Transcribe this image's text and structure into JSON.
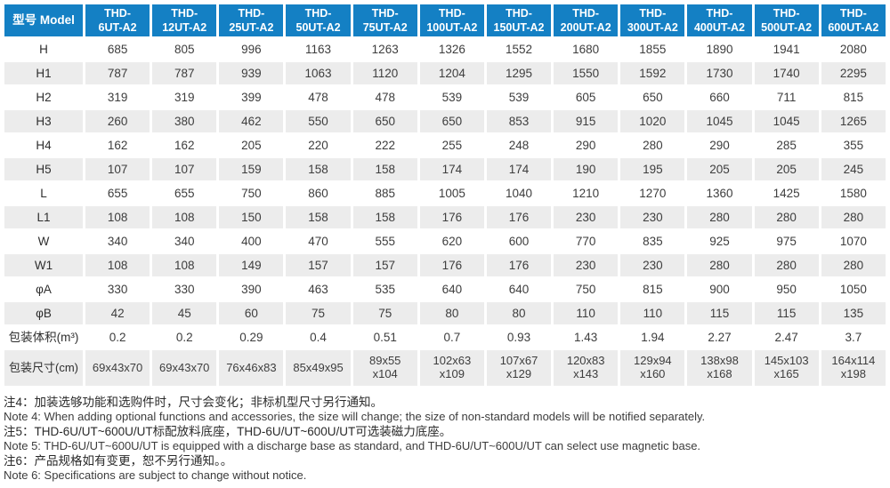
{
  "colors": {
    "header_bg": "#1480c4",
    "stripe_bg": "#ececec",
    "header_text": "#ffffff",
    "body_text": "#3d3d3d",
    "note_text": "#333333"
  },
  "table": {
    "model_header": "型号 Model",
    "models": [
      "THD-\n6UT-A2",
      "THD-\n12UT-A2",
      "THD-\n25UT-A2",
      "THD-\n50UT-A2",
      "THD-\n75UT-A2",
      "THD-\n100UT-A2",
      "THD-\n150UT-A2",
      "THD-\n200UT-A2",
      "THD-\n300UT-A2",
      "THD-\n400UT-A2",
      "THD-\n500UT-A2",
      "THD-\n600UT-A2"
    ],
    "rows": [
      {
        "label": "H",
        "values": [
          "685",
          "805",
          "996",
          "1163",
          "1263",
          "1326",
          "1552",
          "1680",
          "1855",
          "1890",
          "1941",
          "2080"
        ]
      },
      {
        "label": "H1",
        "values": [
          "787",
          "787",
          "939",
          "1063",
          "1120",
          "1204",
          "1295",
          "1550",
          "1592",
          "1730",
          "1740",
          "2295"
        ]
      },
      {
        "label": "H2",
        "values": [
          "319",
          "319",
          "399",
          "478",
          "478",
          "539",
          "539",
          "605",
          "650",
          "660",
          "711",
          "815"
        ]
      },
      {
        "label": "H3",
        "values": [
          "260",
          "380",
          "462",
          "550",
          "650",
          "650",
          "853",
          "915",
          "1020",
          "1045",
          "1045",
          "1265"
        ]
      },
      {
        "label": "H4",
        "values": [
          "162",
          "162",
          "205",
          "220",
          "222",
          "255",
          "248",
          "290",
          "280",
          "290",
          "285",
          "355"
        ]
      },
      {
        "label": "H5",
        "values": [
          "107",
          "107",
          "159",
          "158",
          "158",
          "174",
          "174",
          "190",
          "195",
          "205",
          "205",
          "245"
        ]
      },
      {
        "label": "L",
        "values": [
          "655",
          "655",
          "750",
          "860",
          "885",
          "1005",
          "1040",
          "1210",
          "1270",
          "1360",
          "1425",
          "1580"
        ]
      },
      {
        "label": "L1",
        "values": [
          "108",
          "108",
          "150",
          "158",
          "158",
          "176",
          "176",
          "230",
          "230",
          "280",
          "280",
          "280"
        ]
      },
      {
        "label": "W",
        "values": [
          "340",
          "340",
          "400",
          "470",
          "555",
          "620",
          "600",
          "770",
          "835",
          "925",
          "975",
          "1070"
        ]
      },
      {
        "label": "W1",
        "values": [
          "108",
          "108",
          "149",
          "157",
          "157",
          "176",
          "176",
          "230",
          "230",
          "280",
          "280",
          "280"
        ]
      },
      {
        "label": "φA",
        "values": [
          "330",
          "330",
          "390",
          "463",
          "535",
          "640",
          "640",
          "750",
          "815",
          "900",
          "950",
          "1050"
        ]
      },
      {
        "label": "φB",
        "values": [
          "42",
          "45",
          "60",
          "75",
          "75",
          "80",
          "80",
          "110",
          "110",
          "115",
          "115",
          "135"
        ]
      },
      {
        "label": "包装体积(m³)",
        "values": [
          "0.2",
          "0.2",
          "0.29",
          "0.4",
          "0.51",
          "0.7",
          "0.93",
          "1.43",
          "1.94",
          "2.27",
          "2.47",
          "3.7"
        ]
      },
      {
        "label": "包装尺寸(cm)",
        "values": [
          "69x43x70",
          "69x43x70",
          "76x46x83",
          "85x49x95",
          "89x55\nx104",
          "102x63\nx109",
          "107x67\nx129",
          "120x83\nx143",
          "129x94\nx160",
          "138x98\nx168",
          "145x103\nx165",
          "164x114\nx198"
        ]
      }
    ]
  },
  "notes": [
    "注4：加装选够功能和选购件时，尺寸会变化；非标机型尺寸另行通知。",
    "Note 4: When adding optional functions and accessories, the size will change; the size of non-standard models will be notified separately.",
    "注5：THD-6U/UT~600U/UT标配放料底座，THD-6U/UT~600U/UT可选装磁力底座。",
    "Note 5: THD-6U/UT~600U/UT is equipped with a discharge base as standard, and THD-6U/UT~600U/UT can select use magnetic base.",
    "注6：产品规格如有变更，恕不另行通知。。",
    "Note 6: Specifications are subject to change without notice."
  ]
}
